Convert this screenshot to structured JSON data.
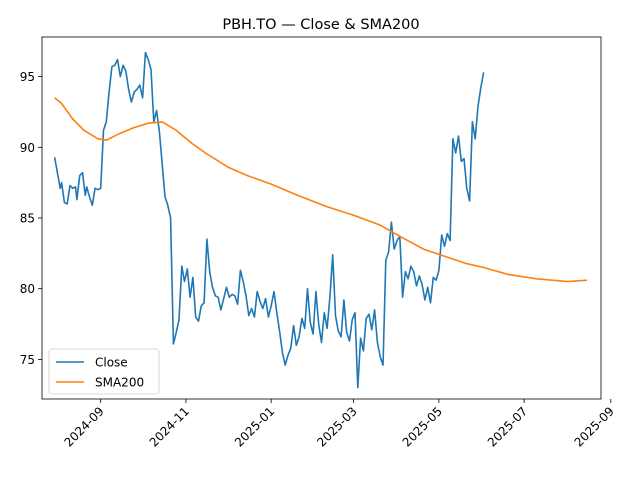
{
  "chart_data": {
    "type": "line",
    "title": "PBH.TO — Close & SMA200",
    "xlabel": "",
    "ylabel": "",
    "x_ticks": [
      "2024-09-01",
      "2024-11-01",
      "2025-01-01",
      "2025-03-01",
      "2025-05-01",
      "2025-07-01",
      "2025-09-01"
    ],
    "x_tick_labels": [
      "2024-09",
      "2024-11",
      "2025-01",
      "2025-03",
      "2025-05",
      "2025-07",
      "2025-09"
    ],
    "y_ticks": [
      75,
      80,
      85,
      90,
      95
    ],
    "xlim": [
      "2024-07-21",
      "2025-08-25"
    ],
    "ylim": [
      72.2,
      97.8
    ],
    "grid": false,
    "legend_position": "lower-left",
    "series": [
      {
        "name": "Close",
        "color": "#1f77b4",
        "points": [
          [
            "2024-07-30",
            89.3
          ],
          [
            "2024-08-01",
            88.2
          ],
          [
            "2024-08-03",
            87.1
          ],
          [
            "2024-08-04",
            87.5
          ],
          [
            "2024-08-06",
            86.1
          ],
          [
            "2024-08-08",
            86.0
          ],
          [
            "2024-08-10",
            87.3
          ],
          [
            "2024-08-12",
            87.1
          ],
          [
            "2024-08-14",
            87.2
          ],
          [
            "2024-08-15",
            86.3
          ],
          [
            "2024-08-17",
            88.0
          ],
          [
            "2024-08-19",
            88.2
          ],
          [
            "2024-08-21",
            86.6
          ],
          [
            "2024-08-22",
            87.2
          ],
          [
            "2024-08-24",
            86.5
          ],
          [
            "2024-08-26",
            85.9
          ],
          [
            "2024-08-28",
            87.1
          ],
          [
            "2024-08-30",
            87.0
          ],
          [
            "2024-09-01",
            87.1
          ],
          [
            "2024-09-03",
            91.2
          ],
          [
            "2024-09-05",
            91.8
          ],
          [
            "2024-09-07",
            93.9
          ],
          [
            "2024-09-09",
            95.7
          ],
          [
            "2024-09-11",
            95.8
          ],
          [
            "2024-09-13",
            96.2
          ],
          [
            "2024-09-15",
            95.0
          ],
          [
            "2024-09-17",
            95.8
          ],
          [
            "2024-09-19",
            95.4
          ],
          [
            "2024-09-21",
            94.1
          ],
          [
            "2024-09-23",
            93.2
          ],
          [
            "2024-09-25",
            93.9
          ],
          [
            "2024-09-27",
            94.1
          ],
          [
            "2024-09-29",
            94.4
          ],
          [
            "2024-10-01",
            93.5
          ],
          [
            "2024-10-03",
            96.7
          ],
          [
            "2024-10-05",
            96.2
          ],
          [
            "2024-10-07",
            95.5
          ],
          [
            "2024-10-09",
            91.8
          ],
          [
            "2024-10-11",
            92.6
          ],
          [
            "2024-10-13",
            91.1
          ],
          [
            "2024-10-15",
            88.8
          ],
          [
            "2024-10-17",
            86.5
          ],
          [
            "2024-10-19",
            85.9
          ],
          [
            "2024-10-21",
            85.0
          ],
          [
            "2024-10-23",
            76.1
          ],
          [
            "2024-10-25",
            76.9
          ],
          [
            "2024-10-27",
            77.8
          ],
          [
            "2024-10-29",
            81.6
          ],
          [
            "2024-10-31",
            80.5
          ],
          [
            "2024-11-02",
            81.4
          ],
          [
            "2024-11-04",
            79.4
          ],
          [
            "2024-11-06",
            80.8
          ],
          [
            "2024-11-08",
            78.0
          ],
          [
            "2024-11-10",
            77.7
          ],
          [
            "2024-11-12",
            78.8
          ],
          [
            "2024-11-14",
            79.0
          ],
          [
            "2024-11-16",
            83.5
          ],
          [
            "2024-11-18",
            81.2
          ],
          [
            "2024-11-20",
            80.1
          ],
          [
            "2024-11-22",
            79.5
          ],
          [
            "2024-11-24",
            79.4
          ],
          [
            "2024-11-26",
            78.5
          ],
          [
            "2024-11-28",
            79.3
          ],
          [
            "2024-11-30",
            80.1
          ],
          [
            "2024-12-02",
            79.4
          ],
          [
            "2024-12-04",
            79.6
          ],
          [
            "2024-12-06",
            79.5
          ],
          [
            "2024-12-08",
            78.9
          ],
          [
            "2024-12-10",
            81.3
          ],
          [
            "2024-12-12",
            80.5
          ],
          [
            "2024-12-14",
            79.5
          ],
          [
            "2024-12-16",
            78.1
          ],
          [
            "2024-12-18",
            78.6
          ],
          [
            "2024-12-20",
            78.0
          ],
          [
            "2024-12-22",
            79.8
          ],
          [
            "2024-12-24",
            79.1
          ],
          [
            "2024-12-26",
            78.6
          ],
          [
            "2024-12-28",
            79.3
          ],
          [
            "2024-12-30",
            78.0
          ],
          [
            "2025-01-01",
            78.8
          ],
          [
            "2025-01-03",
            79.8
          ],
          [
            "2025-01-05",
            78.3
          ],
          [
            "2025-01-07",
            77.0
          ],
          [
            "2025-01-09",
            75.5
          ],
          [
            "2025-01-11",
            74.6
          ],
          [
            "2025-01-13",
            75.3
          ],
          [
            "2025-01-15",
            75.8
          ],
          [
            "2025-01-17",
            77.4
          ],
          [
            "2025-01-19",
            76.0
          ],
          [
            "2025-01-21",
            76.6
          ],
          [
            "2025-01-23",
            77.9
          ],
          [
            "2025-01-25",
            77.2
          ],
          [
            "2025-01-27",
            80.0
          ],
          [
            "2025-01-29",
            77.6
          ],
          [
            "2025-01-31",
            76.8
          ],
          [
            "2025-02-02",
            79.8
          ],
          [
            "2025-02-04",
            77.5
          ],
          [
            "2025-02-06",
            76.2
          ],
          [
            "2025-02-08",
            78.3
          ],
          [
            "2025-02-10",
            77.2
          ],
          [
            "2025-02-12",
            79.4
          ],
          [
            "2025-02-14",
            82.4
          ],
          [
            "2025-02-16",
            78.1
          ],
          [
            "2025-02-18",
            77.0
          ],
          [
            "2025-02-20",
            76.6
          ],
          [
            "2025-02-22",
            79.2
          ],
          [
            "2025-02-24",
            76.9
          ],
          [
            "2025-02-26",
            76.3
          ],
          [
            "2025-02-28",
            77.8
          ],
          [
            "2025-03-02",
            78.3
          ],
          [
            "2025-03-04",
            73.0
          ],
          [
            "2025-03-06",
            76.5
          ],
          [
            "2025-03-08",
            75.6
          ],
          [
            "2025-03-10",
            77.9
          ],
          [
            "2025-03-12",
            78.2
          ],
          [
            "2025-03-14",
            77.1
          ],
          [
            "2025-03-16",
            78.5
          ],
          [
            "2025-03-18",
            76.2
          ],
          [
            "2025-03-20",
            75.2
          ],
          [
            "2025-03-22",
            74.6
          ],
          [
            "2025-03-24",
            82.0
          ],
          [
            "2025-03-26",
            82.6
          ],
          [
            "2025-03-28",
            84.7
          ],
          [
            "2025-03-30",
            82.8
          ],
          [
            "2025-04-01",
            83.4
          ],
          [
            "2025-04-03",
            83.7
          ],
          [
            "2025-04-05",
            79.4
          ],
          [
            "2025-04-07",
            81.2
          ],
          [
            "2025-04-09",
            80.7
          ],
          [
            "2025-04-11",
            81.6
          ],
          [
            "2025-04-13",
            81.2
          ],
          [
            "2025-04-15",
            80.2
          ],
          [
            "2025-04-17",
            80.9
          ],
          [
            "2025-04-19",
            80.3
          ],
          [
            "2025-04-21",
            79.2
          ],
          [
            "2025-04-23",
            80.1
          ],
          [
            "2025-04-25",
            79.0
          ],
          [
            "2025-04-27",
            80.8
          ],
          [
            "2025-04-29",
            80.6
          ],
          [
            "2025-05-01",
            81.3
          ],
          [
            "2025-05-03",
            83.8
          ],
          [
            "2025-05-05",
            83.0
          ],
          [
            "2025-05-07",
            83.9
          ],
          [
            "2025-05-09",
            83.4
          ],
          [
            "2025-05-11",
            90.6
          ],
          [
            "2025-05-13",
            89.6
          ],
          [
            "2025-05-15",
            90.8
          ],
          [
            "2025-05-17",
            89.0
          ],
          [
            "2025-05-19",
            89.2
          ],
          [
            "2025-05-21",
            87.1
          ],
          [
            "2025-05-23",
            86.2
          ],
          [
            "2025-05-25",
            91.8
          ],
          [
            "2025-05-27",
            90.6
          ],
          [
            "2025-05-29",
            92.9
          ],
          [
            "2025-05-31",
            94.2
          ],
          [
            "2025-06-02",
            95.3
          ]
        ]
      },
      {
        "name": "SMA200",
        "color": "#ff7f0e",
        "points": [
          [
            "2024-07-30",
            93.5
          ],
          [
            "2024-08-04",
            93.1
          ],
          [
            "2024-08-12",
            92.0
          ],
          [
            "2024-08-20",
            91.2
          ],
          [
            "2024-08-30",
            90.6
          ],
          [
            "2024-09-05",
            90.5
          ],
          [
            "2024-09-15",
            91.0
          ],
          [
            "2024-09-25",
            91.4
          ],
          [
            "2024-10-05",
            91.7
          ],
          [
            "2024-10-15",
            91.8
          ],
          [
            "2024-10-25",
            91.2
          ],
          [
            "2024-11-05",
            90.3
          ],
          [
            "2024-11-15",
            89.6
          ],
          [
            "2024-12-01",
            88.6
          ],
          [
            "2024-12-15",
            88.0
          ],
          [
            "2025-01-01",
            87.4
          ],
          [
            "2025-01-20",
            86.6
          ],
          [
            "2025-02-10",
            85.8
          ],
          [
            "2025-03-01",
            85.2
          ],
          [
            "2025-03-20",
            84.5
          ],
          [
            "2025-04-05",
            83.6
          ],
          [
            "2025-04-20",
            82.8
          ],
          [
            "2025-05-05",
            82.3
          ],
          [
            "2025-05-20",
            81.8
          ],
          [
            "2025-06-02",
            81.5
          ],
          [
            "2025-06-20",
            81.0
          ],
          [
            "2025-07-10",
            80.7
          ],
          [
            "2025-08-01",
            80.5
          ],
          [
            "2025-08-15",
            80.6
          ]
        ]
      }
    ]
  }
}
